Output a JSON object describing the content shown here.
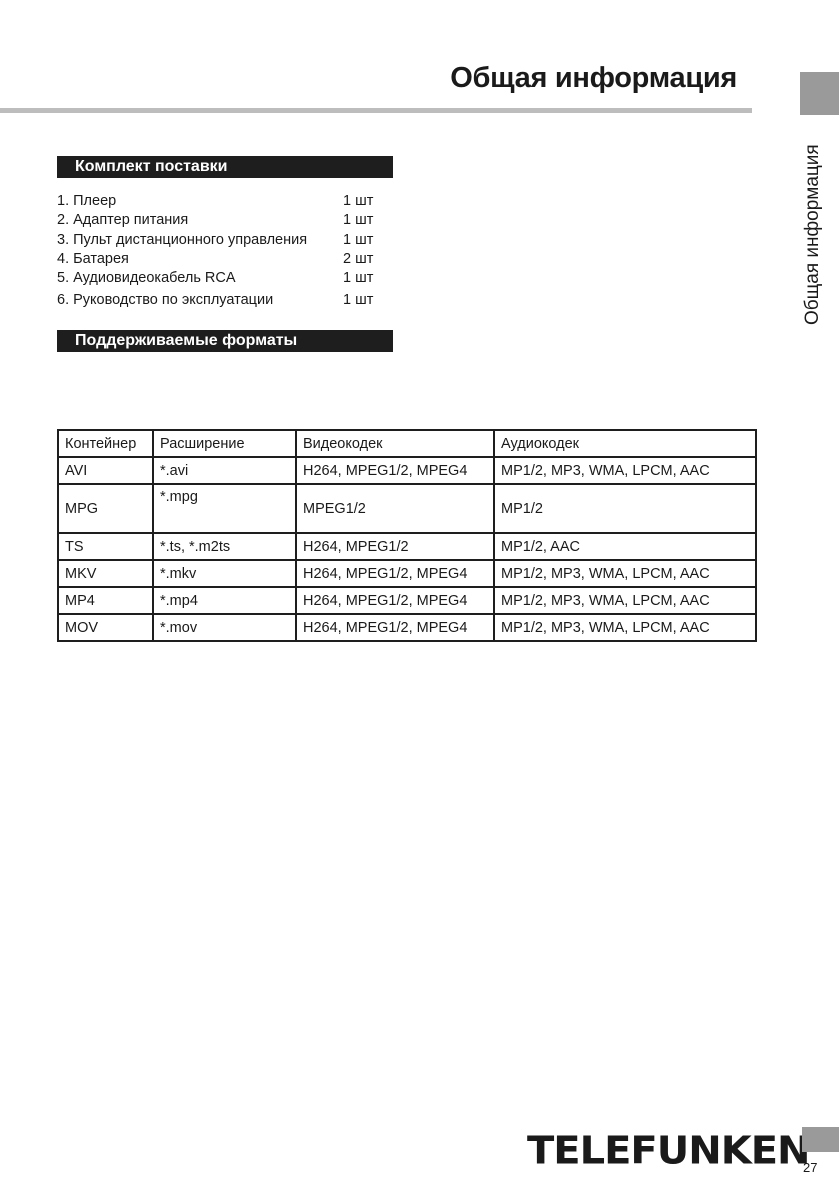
{
  "header": {
    "title": "Общая информация",
    "side_tab": "Общая информация"
  },
  "package": {
    "heading": "Комплект поставки",
    "items": [
      {
        "name": "1. Плеер",
        "qty": "1 шт"
      },
      {
        "name": "2. Адаптер питания",
        "qty": "1 шт"
      },
      {
        "name": "3. Пульт дистанционного управления",
        "qty": "1 шт"
      },
      {
        "name": "4. Батарея",
        "qty": "2 шт"
      },
      {
        "name": "5. Аудиовидеокабель RCA",
        "qty": "1 шт"
      },
      {
        "name": "6. Руководство по эксплуатации",
        "qty": "1 шт"
      }
    ]
  },
  "formats": {
    "heading": "Поддерживаемые форматы",
    "columns": [
      "Контейнер",
      "Расширение",
      "Видеокодек",
      "Аудиокодек"
    ],
    "rows": [
      [
        "AVI",
        "*.avi",
        "H264, MPEG1/2, MPEG4",
        "MP1/2, MP3, WMA, LPCM, AAC"
      ],
      [
        "MPG",
        "*.mpg",
        "MPEG1/2",
        "MP1/2"
      ],
      [
        "TS",
        "*.ts, *.m2ts",
        "H264, MPEG1/2",
        "MP1/2, AAC"
      ],
      [
        "MKV",
        "*.mkv",
        "H264, MPEG1/2, MPEG4",
        "MP1/2, MP3, WMA, LPCM, AAC"
      ],
      [
        "MP4",
        "*.mp4",
        "H264, MPEG1/2, MPEG4",
        "MP1/2, MP3, WMA, LPCM, AAC"
      ],
      [
        "MOV",
        "*.mov",
        "H264, MPEG1/2, MPEG4",
        "MP1/2, MP3, WMA, LPCM, AAC"
      ]
    ]
  },
  "footer": {
    "logo": "TELEFUNKEN",
    "page_number": "27"
  },
  "colors": {
    "rule": "#bdbdbd",
    "tab": "#9a9a9a",
    "heading_bg": "#1e1e1e"
  }
}
